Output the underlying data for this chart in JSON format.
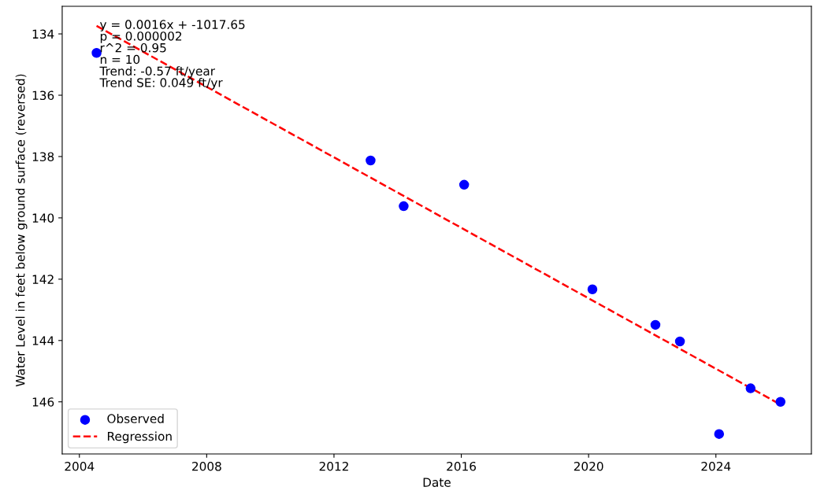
{
  "chart_data": {
    "type": "scatter",
    "xlabel": "Date",
    "ylabel": "Water Level in feet below ground surface (reversed)",
    "series": [
      {
        "name": "Observed",
        "color": "#0000ff",
        "marker": "circle",
        "x": [
          2004.54,
          2013.15,
          2014.19,
          2016.09,
          2020.12,
          2022.1,
          2022.87,
          2024.1,
          2025.09,
          2026.03
        ],
        "values": [
          134.62,
          138.13,
          139.62,
          138.92,
          142.33,
          143.49,
          144.03,
          147.05,
          145.56,
          146.0
        ]
      },
      {
        "name": "Regression",
        "type": "line",
        "color": "#ff0000",
        "line_style": "dashed",
        "marker": "none",
        "x": [
          2004.54,
          2026.05
        ],
        "values": [
          133.74,
          146.1
        ]
      }
    ],
    "annotations": [
      "y = 0.0016x + -1017.65\np = 0.000002\nr^2 = 0.95\nn = 10\nTrend: -0.57 ft/year\nTrend SE: 0.049 ft/yr"
    ],
    "xlim": [
      2003.46,
      2027.0
    ],
    "ylim": [
      147.7,
      133.1
    ],
    "xticks": [
      2004,
      2008,
      2012,
      2016,
      2020,
      2024
    ],
    "yticks": [
      134,
      136,
      138,
      140,
      142,
      144,
      146
    ],
    "legend": "bottom left",
    "grid": false
  }
}
